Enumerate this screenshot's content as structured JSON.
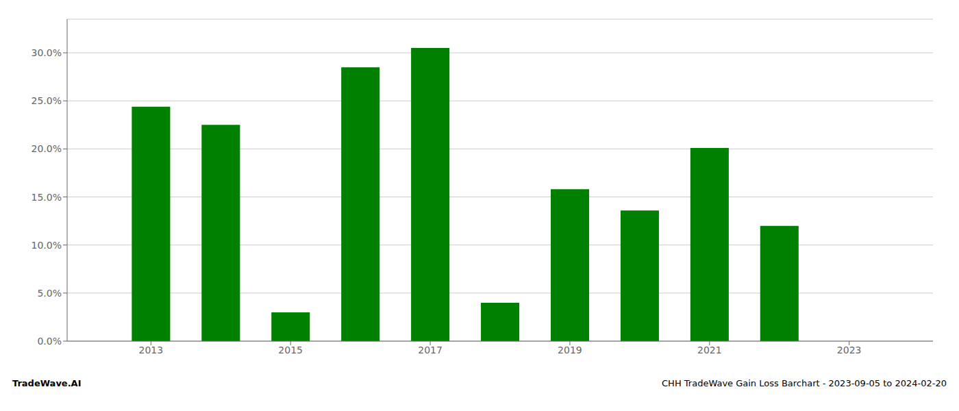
{
  "chart_data": {
    "type": "bar",
    "title": "CHH TradeWave Gain Loss Barchart - 2023-09-05 to 2024-02-20",
    "annotations": [
      "TradeWave.AI"
    ],
    "x": [
      2013,
      2014,
      2015,
      2016,
      2017,
      2018,
      2019,
      2020,
      2021,
      2022
    ],
    "values": [
      0.244,
      0.225,
      0.03,
      0.285,
      0.305,
      0.04,
      0.158,
      0.136,
      0.201,
      0.12
    ],
    "color": "#008000",
    "xlim": [
      2011.8,
      2024.2
    ],
    "xticks": [
      2013,
      2015,
      2017,
      2019,
      2021,
      2023
    ],
    "ylim": [
      0,
      0.335
    ],
    "yticks": [
      {
        "value": 0.0,
        "label": "0.0%"
      },
      {
        "value": 0.05,
        "label": "5.0%"
      },
      {
        "value": 0.1,
        "label": "10.0%"
      },
      {
        "value": 0.15,
        "label": "15.0%"
      },
      {
        "value": 0.2,
        "label": "20.0%"
      },
      {
        "value": 0.25,
        "label": "25.0%"
      },
      {
        "value": 0.3,
        "label": "30.0%"
      }
    ],
    "grid": true
  }
}
